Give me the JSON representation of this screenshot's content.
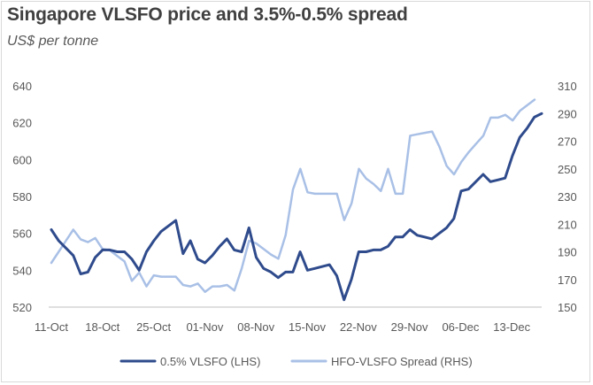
{
  "chart_data": {
    "type": "line",
    "title": "Singapore VLSFO price and 3.5%-0.5% spread",
    "subtitle": "US$ per tonne",
    "x_ticks": [
      "11-Oct",
      "18-Oct",
      "25-Oct",
      "01-Nov",
      "08-Nov",
      "15-Nov",
      "22-Nov",
      "29-Nov",
      "06-Dec",
      "13-Dec"
    ],
    "ylim_left": [
      520,
      640
    ],
    "yticks_left": [
      520,
      540,
      560,
      580,
      600,
      620,
      640
    ],
    "ylim_right": [
      150,
      310
    ],
    "yticks_right": [
      150,
      170,
      190,
      210,
      230,
      250,
      270,
      290,
      310
    ],
    "grid": false,
    "legend": "bottom",
    "series": [
      {
        "name": "0.5% VLSFO (LHS)",
        "axis": "left",
        "color": "#2f4b8c",
        "values": [
          562,
          556,
          552,
          548,
          538,
          539,
          547,
          551,
          551,
          550,
          550,
          546,
          540,
          550,
          556,
          561,
          564,
          567,
          549,
          556,
          546,
          544,
          548,
          553,
          557,
          551,
          550,
          563,
          547,
          541,
          539,
          536,
          539,
          539,
          550,
          540,
          541,
          542,
          543,
          537,
          524,
          535,
          550,
          550,
          551,
          551,
          553,
          558,
          558,
          562,
          559,
          558,
          557,
          560,
          563,
          568,
          583,
          584,
          588,
          592,
          588,
          589,
          590,
          602,
          612,
          617,
          623,
          625
        ]
      },
      {
        "name": "HFO-VLSFO Spread (RHS)",
        "axis": "right",
        "color": "#a9c0e6",
        "values": [
          182,
          190,
          198,
          206,
          199,
          197,
          200,
          192,
          191,
          187,
          183,
          169,
          175,
          165,
          173,
          172,
          172,
          172,
          166,
          165,
          167,
          161,
          165,
          165,
          166,
          162,
          178,
          198,
          196,
          192,
          188,
          185,
          202,
          235,
          250,
          233,
          232,
          232,
          232,
          232,
          213,
          225,
          250,
          243,
          239,
          234,
          250,
          232,
          232,
          274,
          275,
          276,
          277,
          266,
          252,
          246,
          255,
          262,
          268,
          274,
          287,
          287,
          289,
          285,
          292,
          296,
          300
        ]
      }
    ]
  }
}
